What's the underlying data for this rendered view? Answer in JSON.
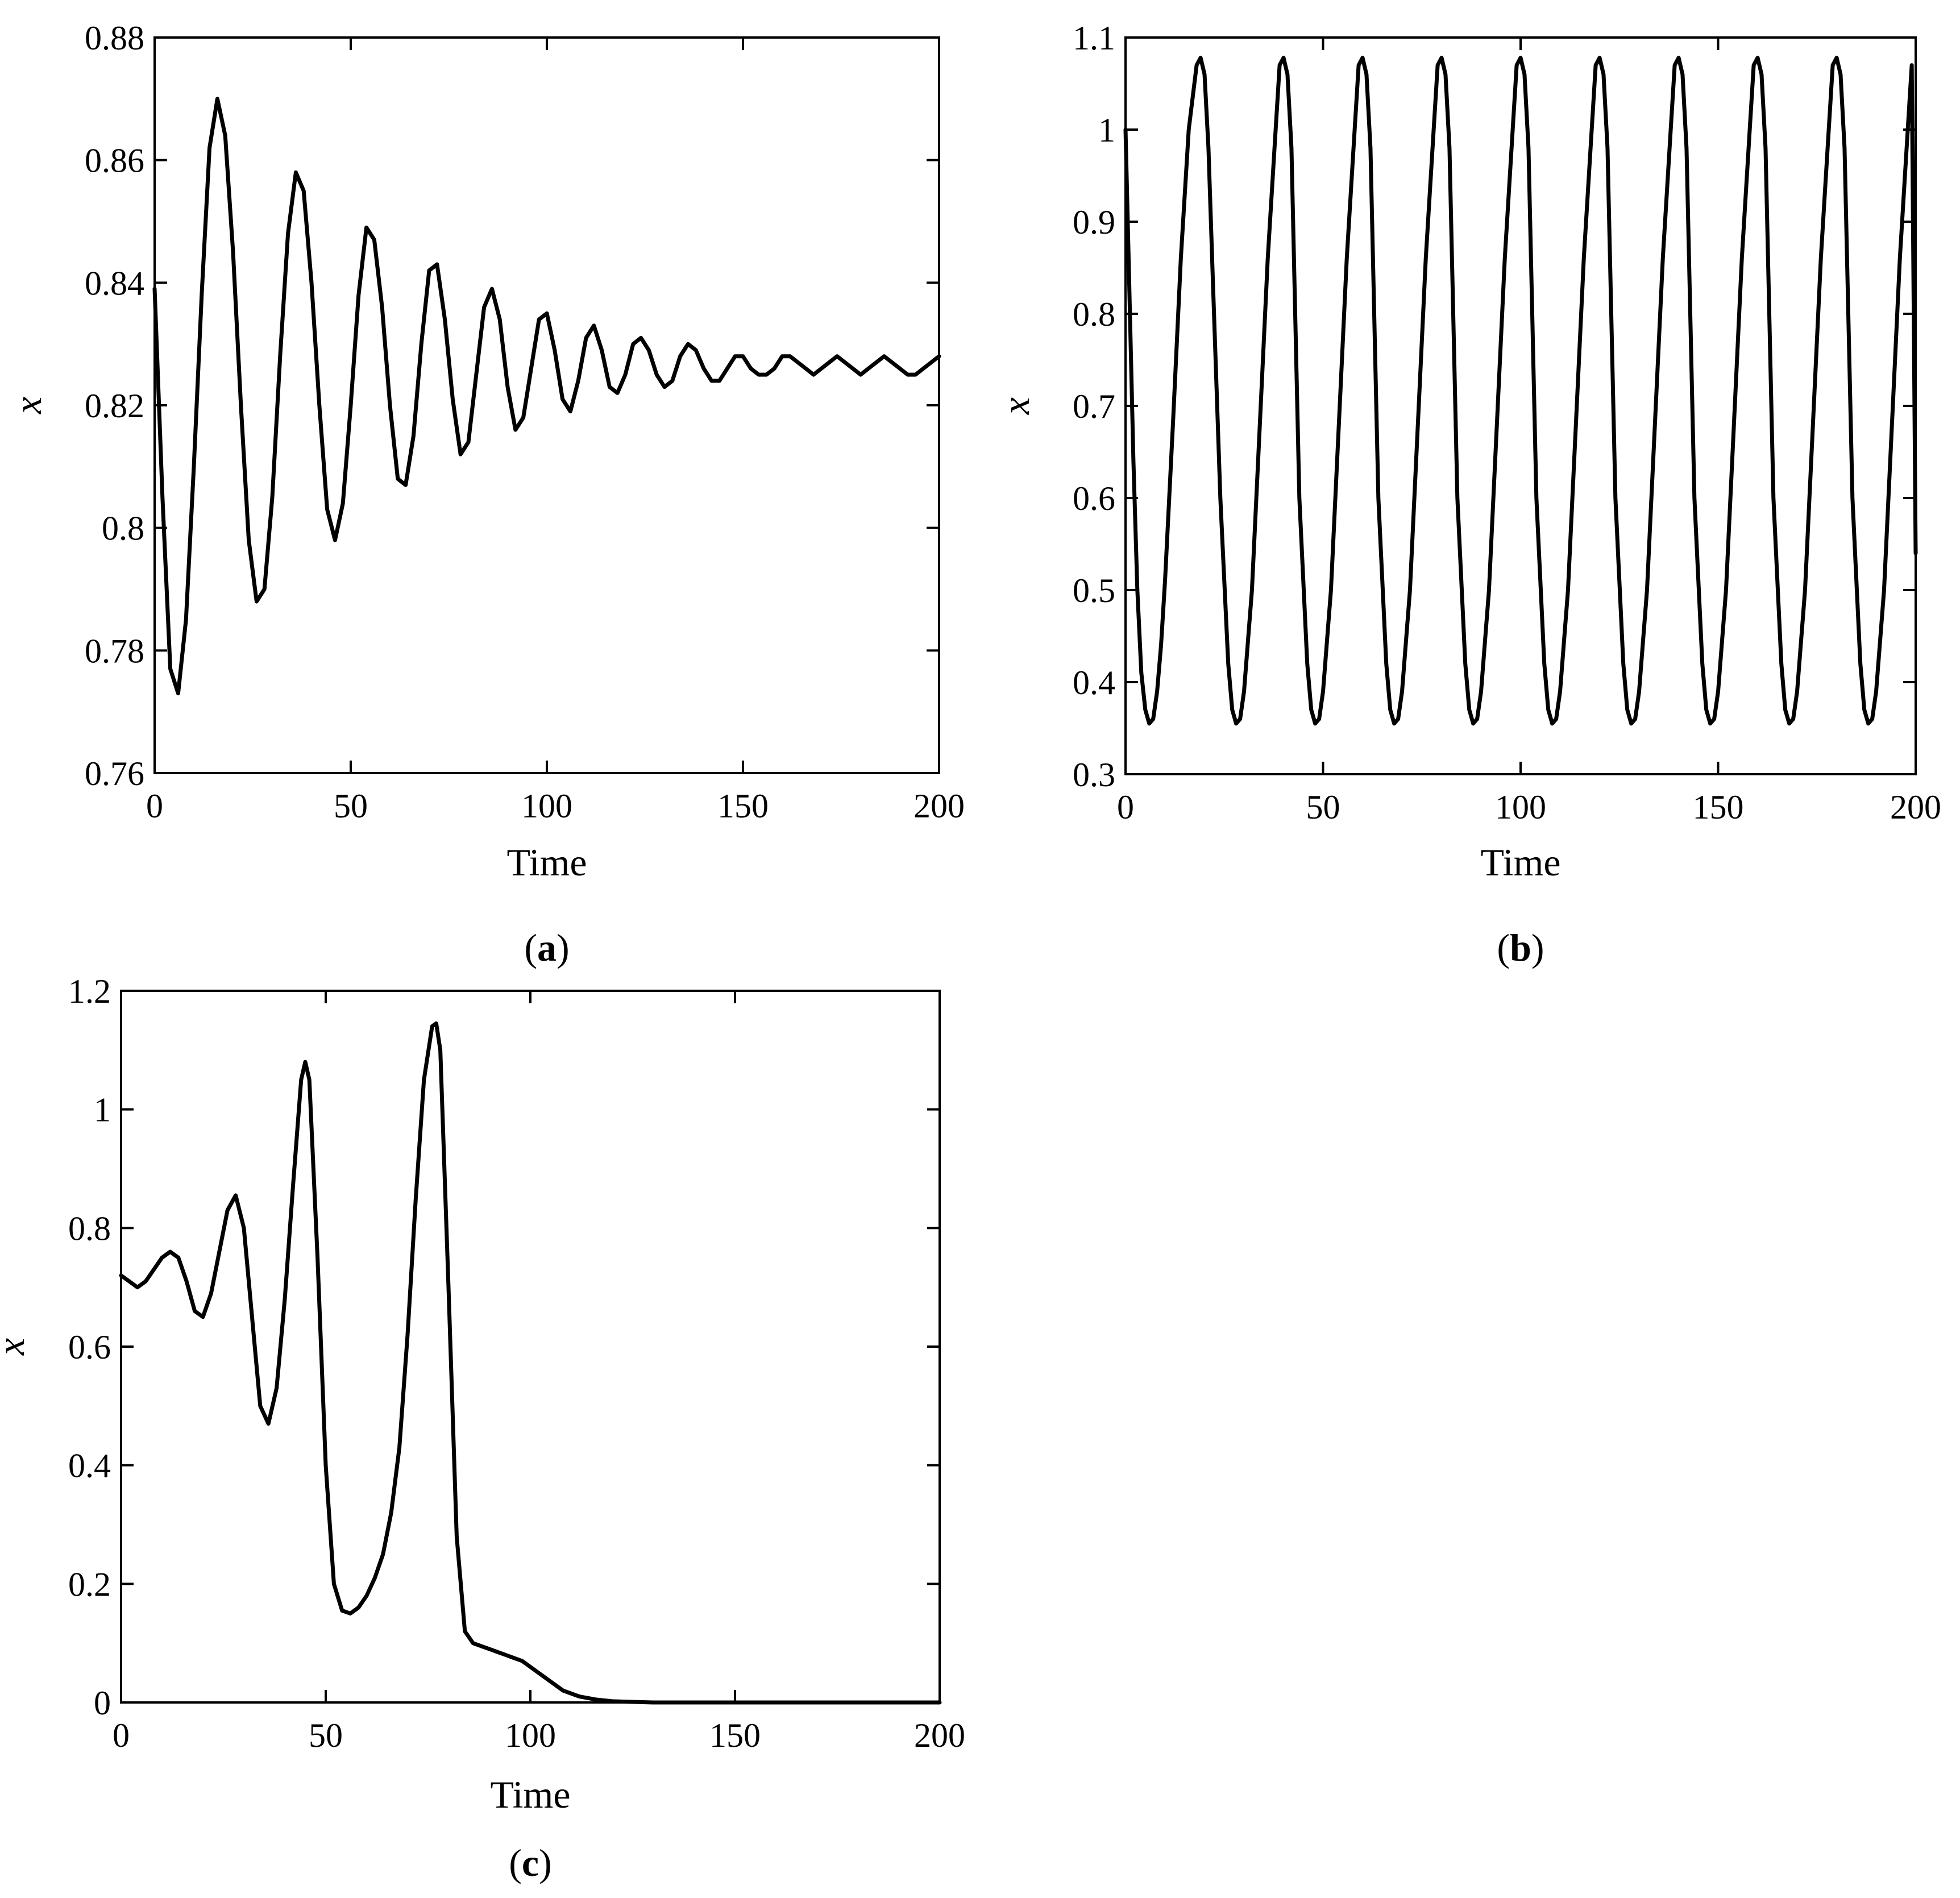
{
  "chart_data": [
    {
      "id": "a",
      "type": "line",
      "caption": {
        "open": "(",
        "letter": "a",
        "close": ")"
      },
      "xlabel": "Time",
      "ylabel": "x",
      "xlim": [
        0,
        200
      ],
      "ylim": [
        0.76,
        0.88
      ],
      "xticks": [
        0,
        50,
        100,
        150,
        200
      ],
      "xtick_labels": [
        "0",
        "50",
        "100",
        "150",
        "200"
      ],
      "yticks": [
        0.76,
        0.78,
        0.8,
        0.82,
        0.84,
        0.86,
        0.88
      ],
      "ytick_labels": [
        "0.76",
        "0.78",
        "0.8",
        "0.82",
        "0.84",
        "0.86",
        "0.88"
      ],
      "grid": false,
      "series": [
        {
          "color": "#000000",
          "x": [
            0,
            2,
            4,
            6,
            8,
            10,
            12,
            14,
            16,
            18,
            20,
            22,
            24,
            26,
            28,
            30,
            32,
            34,
            36,
            38,
            40,
            42,
            44,
            46,
            48,
            50,
            52,
            54,
            56,
            58,
            60,
            62,
            64,
            66,
            68,
            70,
            72,
            74,
            76,
            78,
            80,
            82,
            84,
            86,
            88,
            90,
            92,
            94,
            96,
            98,
            100,
            102,
            104,
            106,
            108,
            110,
            112,
            114,
            116,
            118,
            120,
            122,
            124,
            126,
            128,
            130,
            132,
            134,
            136,
            138,
            140,
            142,
            144,
            146,
            148,
            150,
            152,
            154,
            156,
            158,
            160,
            162,
            164,
            166,
            168,
            170,
            172,
            174,
            176,
            178,
            180,
            182,
            184,
            186,
            188,
            190,
            192,
            194,
            196,
            198,
            200
          ],
          "y": [
            0.839,
            0.805,
            0.777,
            0.773,
            0.785,
            0.81,
            0.838,
            0.862,
            0.87,
            0.864,
            0.845,
            0.82,
            0.798,
            0.788,
            0.79,
            0.805,
            0.828,
            0.848,
            0.858,
            0.855,
            0.84,
            0.82,
            0.803,
            0.798,
            0.804,
            0.82,
            0.838,
            0.849,
            0.847,
            0.836,
            0.82,
            0.808,
            0.807,
            0.815,
            0.83,
            0.842,
            0.843,
            0.834,
            0.821,
            0.812,
            0.814,
            0.825,
            0.836,
            0.839,
            0.834,
            0.823,
            0.816,
            0.818,
            0.826,
            0.834,
            0.835,
            0.829,
            0.821,
            0.819,
            0.824,
            0.831,
            0.833,
            0.829,
            0.823,
            0.822,
            0.825,
            0.83,
            0.831,
            0.829,
            0.825,
            0.823,
            0.824,
            0.828,
            0.83,
            0.829,
            0.826,
            0.824,
            0.824,
            0.826,
            0.828,
            0.828,
            0.826,
            0.825,
            0.825,
            0.826,
            0.828,
            0.828,
            0.827,
            0.826,
            0.825,
            0.826,
            0.827,
            0.828,
            0.827,
            0.826,
            0.825,
            0.826,
            0.827,
            0.828,
            0.827,
            0.826,
            0.825,
            0.825,
            0.826,
            0.827,
            0.828
          ]
        }
      ]
    },
    {
      "id": "b",
      "type": "line",
      "caption": {
        "open": "(",
        "letter": "b",
        "close": ")"
      },
      "xlabel": "Time",
      "ylabel": "x",
      "xlim": [
        0,
        200
      ],
      "ylim": [
        0.3,
        1.1
      ],
      "xticks": [
        0,
        50,
        100,
        150,
        200
      ],
      "xtick_labels": [
        "0",
        "50",
        "100",
        "150",
        "200"
      ],
      "yticks": [
        0.3,
        0.4,
        0.5,
        0.6,
        0.7,
        0.8,
        0.9,
        1.0,
        1.1
      ],
      "ytick_labels": [
        "0.3",
        "0.4",
        "0.5",
        "0.6",
        "0.7",
        "0.8",
        "0.9",
        "1",
        "1.1"
      ],
      "grid": false,
      "series": [
        {
          "color": "#000000",
          "x": [
            0,
            1,
            2,
            3,
            4,
            5,
            6,
            7,
            8,
            9,
            10,
            12,
            14,
            16,
            18,
            19,
            20,
            21,
            22,
            24,
            26,
            27,
            28,
            29,
            30,
            32,
            34,
            36,
            38,
            39,
            40,
            41,
            42,
            44,
            46,
            47,
            48,
            49,
            50,
            52,
            54,
            56,
            58,
            59,
            60,
            61,
            62,
            64,
            66,
            67,
            68,
            69,
            70,
            72,
            74,
            76,
            78,
            79,
            80,
            81,
            82,
            84,
            86,
            87,
            88,
            89,
            90,
            92,
            94,
            96,
            98,
            99,
            100,
            101,
            102,
            104,
            106,
            107,
            108,
            109,
            110,
            112,
            114,
            116,
            118,
            119,
            120,
            121,
            122,
            124,
            126,
            127,
            128,
            129,
            130,
            132,
            134,
            136,
            138,
            139,
            140,
            141,
            142,
            144,
            146,
            147,
            148,
            149,
            150,
            152,
            154,
            156,
            158,
            159,
            160,
            161,
            162,
            164,
            166,
            167,
            168,
            169,
            170,
            172,
            174,
            176,
            178,
            179,
            180,
            181,
            182,
            184,
            186,
            187,
            188,
            189,
            190,
            192,
            194,
            196,
            198,
            199,
            200
          ],
          "y": [
            1.0,
            0.82,
            0.64,
            0.5,
            0.41,
            0.37,
            0.355,
            0.36,
            0.39,
            0.44,
            0.51,
            0.68,
            0.86,
            1.0,
            1.07,
            1.078,
            1.06,
            0.98,
            0.85,
            0.6,
            0.42,
            0.37,
            0.355,
            0.36,
            0.39,
            0.5,
            0.68,
            0.86,
            1.0,
            1.07,
            1.078,
            1.06,
            0.98,
            0.6,
            0.42,
            0.37,
            0.355,
            0.36,
            0.39,
            0.5,
            0.68,
            0.86,
            1.0,
            1.07,
            1.078,
            1.06,
            0.98,
            0.6,
            0.42,
            0.37,
            0.355,
            0.36,
            0.39,
            0.5,
            0.68,
            0.86,
            1.0,
            1.07,
            1.078,
            1.06,
            0.98,
            0.6,
            0.42,
            0.37,
            0.355,
            0.36,
            0.39,
            0.5,
            0.68,
            0.86,
            1.0,
            1.07,
            1.078,
            1.06,
            0.98,
            0.6,
            0.42,
            0.37,
            0.355,
            0.36,
            0.39,
            0.5,
            0.68,
            0.86,
            1.0,
            1.07,
            1.078,
            1.06,
            0.98,
            0.6,
            0.42,
            0.37,
            0.355,
            0.36,
            0.39,
            0.5,
            0.68,
            0.86,
            1.0,
            1.07,
            1.078,
            1.06,
            0.98,
            0.6,
            0.42,
            0.37,
            0.355,
            0.36,
            0.39,
            0.5,
            0.68,
            0.86,
            1.0,
            1.07,
            1.078,
            1.06,
            0.98,
            0.6,
            0.42,
            0.37,
            0.355,
            0.36,
            0.39,
            0.5,
            0.68,
            0.86,
            1.0,
            1.07,
            1.078,
            1.06,
            0.98,
            0.6,
            0.42,
            0.37,
            0.355,
            0.36,
            0.39,
            0.5,
            0.68,
            0.86,
            1.0,
            1.07,
            0.54
          ]
        }
      ]
    },
    {
      "id": "c",
      "type": "line",
      "caption": {
        "open": "(",
        "letter": "c",
        "close": ")"
      },
      "xlabel": "Time",
      "ylabel": "x",
      "xlim": [
        0,
        200
      ],
      "ylim": [
        0,
        1.2
      ],
      "xticks": [
        0,
        50,
        100,
        150,
        200
      ],
      "xtick_labels": [
        "0",
        "50",
        "100",
        "150",
        "200"
      ],
      "yticks": [
        0,
        0.2,
        0.4,
        0.6,
        0.8,
        1.0,
        1.2
      ],
      "ytick_labels": [
        "0",
        "0.2",
        "0.4",
        "0.6",
        "0.8",
        "1",
        "1.2"
      ],
      "grid": false,
      "series": [
        {
          "color": "#000000",
          "x": [
            0,
            2,
            4,
            6,
            8,
            10,
            12,
            14,
            16,
            18,
            20,
            22,
            24,
            26,
            28,
            30,
            32,
            34,
            36,
            38,
            40,
            42,
            44,
            45,
            46,
            48,
            50,
            52,
            54,
            56,
            58,
            60,
            62,
            64,
            66,
            68,
            70,
            72,
            74,
            76,
            77,
            78,
            80,
            82,
            84,
            86,
            88,
            90,
            92,
            94,
            96,
            98,
            100,
            104,
            108,
            112,
            116,
            120,
            125,
            130,
            140,
            150,
            160,
            170,
            180,
            190,
            200
          ],
          "y": [
            0.72,
            0.71,
            0.7,
            0.71,
            0.73,
            0.75,
            0.76,
            0.75,
            0.71,
            0.66,
            0.65,
            0.69,
            0.76,
            0.83,
            0.855,
            0.8,
            0.65,
            0.5,
            0.47,
            0.53,
            0.68,
            0.87,
            1.05,
            1.08,
            1.05,
            0.75,
            0.4,
            0.2,
            0.155,
            0.15,
            0.16,
            0.18,
            0.21,
            0.25,
            0.32,
            0.43,
            0.62,
            0.85,
            1.05,
            1.14,
            1.145,
            1.1,
            0.7,
            0.28,
            0.12,
            0.1,
            0.095,
            0.09,
            0.085,
            0.08,
            0.075,
            0.07,
            0.06,
            0.04,
            0.02,
            0.01,
            0.005,
            0.002,
            0.001,
            0.0,
            0.0,
            0.0,
            0.0,
            0.0,
            0.0,
            0.0,
            0.0
          ]
        }
      ]
    }
  ]
}
